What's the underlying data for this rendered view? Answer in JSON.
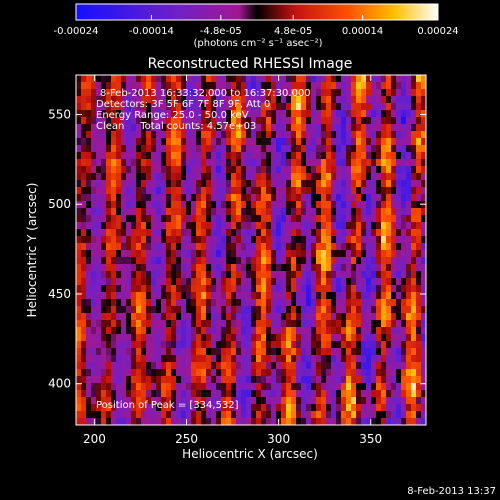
{
  "colorbar": {
    "tick_labels": [
      "-0.00024",
      "-0.00014",
      "-4.8e-05",
      "4.8e-05",
      "0.00014",
      "0.00024"
    ],
    "tick_values": [
      -0.00024,
      -0.00014,
      -4.8e-05,
      4.8e-05,
      0.00014,
      0.00024
    ],
    "range": [
      -0.00024,
      0.00024
    ],
    "unit_label": "(photons cm⁻² s⁻¹ asec⁻²)"
  },
  "annotations": {
    "line1": "8-Feb-2013 16:33:32.000 to 16:37:30.000",
    "line2": "Detectors: 3F 5F 6F 7F 8F 9F, Att 0",
    "line3": "Energy Range: 25.0 - 50.0 keV",
    "line4": "Clean     Total counts: 4.57e+03",
    "peak": "Position of Peak = [334,532]"
  },
  "timestamp": "8-Feb-2013 13:37",
  "colors": {
    "background": "#000000",
    "text": "#ffffff"
  },
  "chart_data": {
    "type": "heatmap",
    "title": "Reconstructed RHESSI Image",
    "xlabel": "Heliocentric X (arcsec)",
    "ylabel": "Heliocentric Y (arcsec)",
    "xlim": [
      190,
      380
    ],
    "ylim": [
      377,
      572
    ],
    "x_ticks": [
      200,
      250,
      300,
      350
    ],
    "y_ticks": [
      400,
      450,
      500,
      550
    ],
    "x_tick_labels": [
      "200",
      "250",
      "300",
      "350"
    ],
    "y_tick_labels": [
      "400",
      "450",
      "500",
      "550"
    ],
    "colormap": "blue-purple-red-orange-yellow-white (rainbow/hot)",
    "value_range": [
      -0.00024,
      0.00024
    ],
    "peak_position": [
      334,
      532
    ],
    "grid": false
  }
}
